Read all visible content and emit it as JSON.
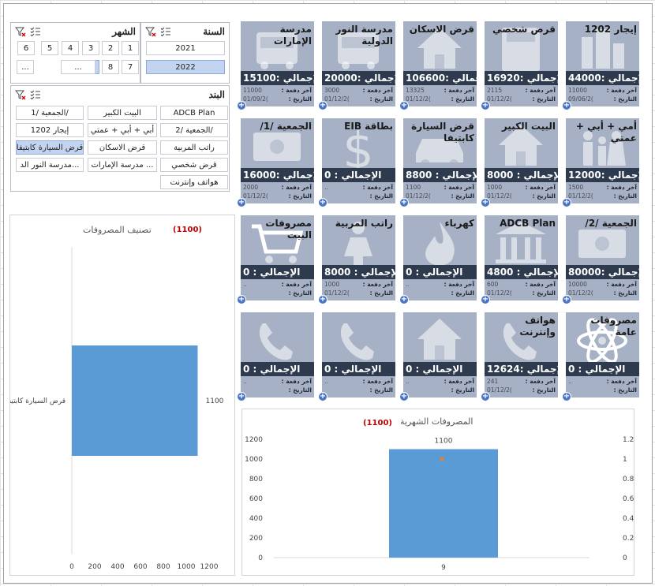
{
  "slicers": {
    "month": {
      "title": "الشهر",
      "items": [
        "1",
        "2",
        "3",
        "4",
        "5",
        "6",
        "7",
        "8",
        "9",
        "...",
        "...",
        "..."
      ],
      "selected": "9"
    },
    "year": {
      "title": "السنة",
      "items": [
        "2021",
        "2022"
      ],
      "selected": "2022"
    },
    "item": {
      "title": "البند",
      "items": [
        "ADCB Plan",
        "البيت الكبير",
        "الجمعية /1/",
        "الجمعية /2/",
        "أبي + أبي + عمتي",
        "إيجار 1202",
        "راتب المربية",
        "قرض الاسكان",
        "قرض السيارة كابتيفا",
        "قرض شخصي",
        "مدرسة الإمارات ...",
        "مدرسة النور الد...",
        "هواتف وإنترنت"
      ],
      "selected": "قرض السيارة كابتيفا"
    }
  },
  "tile_labels": {
    "last_payment": "آخر دفعة :",
    "date": "التاريخ :"
  },
  "tiles": [
    {
      "title": "إيجار 1202",
      "total": "الإجمالي :44000",
      "last": "11000",
      "date": "09/06/2(",
      "icon": "buildings-icon"
    },
    {
      "title": "قرض شخصي",
      "total": "الإجمالي :16920",
      "last": "2115",
      "date": "01/12/2(",
      "icon": "calculator-icon"
    },
    {
      "title": "قرض الاسكان",
      "total": "الإجمالي :106600",
      "last": "13325",
      "date": "01/12/2(",
      "icon": "house-icon"
    },
    {
      "title": "مدرسة النور الدولية",
      "total": "الإجمالي :20000",
      "last": "3000",
      "date": "01/12/2(",
      "icon": "bus-icon"
    },
    {
      "title": "مدرسة الإمارات",
      "total": "الإجمالي :15100",
      "last": "11000",
      "date": "01/09/2(",
      "icon": "bus-icon"
    },
    {
      "title": "أمي + أبي + عمتي",
      "total": "الإجمالي :12000",
      "last": "1500",
      "date": "01/12/2(",
      "icon": "family-icon"
    },
    {
      "title": "البيت الكبير",
      "total": "الإجمالي : 8000",
      "last": "1000",
      "date": "01/12/2(",
      "icon": "house-icon"
    },
    {
      "title": "قرض السيارة كابتيفا",
      "total": "الإجمالي : 8800",
      "last": "1100",
      "date": "01/12/2(",
      "icon": "car-icon"
    },
    {
      "title": "بطاقة EIB",
      "total": "الإجمالي :      0",
      "last": "..",
      "date": "",
      "icon": "dollar-icon"
    },
    {
      "title": "الجمعية /1/",
      "total": "الإجمالي :16000",
      "last": "2000",
      "date": "01/12/2(",
      "icon": "money-icon"
    },
    {
      "title": "الجمعية /2/",
      "total": "الإجمالي :80000",
      "last": "10000",
      "date": "01/12/2(",
      "icon": "money-icon"
    },
    {
      "title": "ADCB Plan",
      "total": "الإجمالي : 4800",
      "last": "600",
      "date": "01/12/2(",
      "icon": "bank-icon"
    },
    {
      "title": "كهرباء",
      "total": "الإجمالي :    0",
      "last": "..",
      "date": "",
      "icon": "flame-icon"
    },
    {
      "title": "راتب المربية",
      "total": "الإجمالي : 8000",
      "last": "1000",
      "date": "01/12/2(",
      "icon": "woman-icon"
    },
    {
      "title": "مصروفات البيت",
      "total": "الإجمالي :   0",
      "last": "..",
      "date": "",
      "icon": "cart-icon"
    },
    {
      "title": "مصروفات عامة",
      "total": "الإجمالي :   0",
      "last": "..",
      "date": "",
      "icon": "atom-icon"
    },
    {
      "title": "هواتف وإنترنت",
      "total": "الإجمالي :12624",
      "last": "241",
      "date": "01/12/2(",
      "icon": "phone-icon"
    },
    {
      "title": "",
      "total": "الإجمالي :   0",
      "last": "..",
      "date": "",
      "icon": "house-icon"
    },
    {
      "title": "",
      "total": "الإجمالي :   0",
      "last": "..",
      "date": "",
      "icon": "phone-icon"
    },
    {
      "title": "",
      "total": "الإجمالي :   0",
      "last": "..",
      "date": "",
      "icon": "phone-icon"
    }
  ],
  "chart_data": [
    {
      "type": "bar",
      "orientation": "horizontal",
      "title": "تصنيف المصروفات",
      "subtitle": "(1100)",
      "categories": [
        "قرض السيارة كابتيفا"
      ],
      "values": [
        1100
      ],
      "data_labels": [
        "1100"
      ],
      "xlim": [
        0,
        1200
      ],
      "x_ticks": [
        "0",
        "200",
        "400",
        "600",
        "800",
        "1000",
        "1200"
      ],
      "bar_color": "#5b9bd5"
    },
    {
      "type": "bar",
      "title": "المصروفات الشهرية",
      "subtitle": "(1100)",
      "categories": [
        "9"
      ],
      "values": [
        1100
      ],
      "data_labels": [
        "1100"
      ],
      "ylim": [
        0,
        1200
      ],
      "y_ticks": [
        "0",
        "200",
        "400",
        "600",
        "800",
        "1000",
        "1200"
      ],
      "y2_ticks": [
        "0",
        "0.2",
        "0.4",
        "0.6",
        "0.8",
        "1",
        "1.2"
      ],
      "secondary_point": 1,
      "bar_color": "#5b9bd5",
      "point_color": "#ed7d31"
    }
  ]
}
